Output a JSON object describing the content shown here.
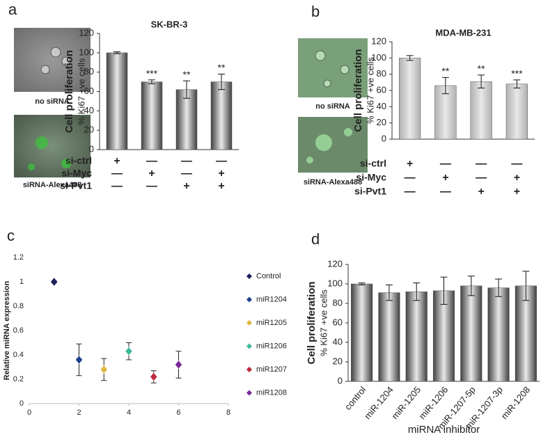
{
  "chart_data": [
    {
      "type": "bar",
      "panel_label": "a",
      "title": "SK-BR-3",
      "ylabel": "Cell proliferation",
      "ylabel2": "% Ki67 +ve cells",
      "image_captions": [
        "no siRNA",
        "siRNA-Alexa488"
      ],
      "values": [
        100,
        70,
        62,
        70
      ],
      "errors": [
        1,
        2,
        9,
        8
      ],
      "annotations": [
        null,
        "***",
        "**",
        "**"
      ],
      "treatments": [
        {
          "name": "si-ctrl",
          "marks": [
            "+",
            "—",
            "—",
            "—"
          ]
        },
        {
          "name": "si-Myc",
          "marks": [
            "—",
            "+",
            "—",
            "+"
          ]
        },
        {
          "name": "si-Pvt1",
          "marks": [
            "—",
            "—",
            "+",
            "+"
          ]
        }
      ],
      "color": "#404040",
      "ylim": [
        0,
        120
      ],
      "yticks": [
        0,
        20,
        40,
        60,
        80,
        100,
        120
      ]
    },
    {
      "type": "bar",
      "panel_label": "b",
      "title": "MDA-MB-231",
      "ylabel": "Cell proliferation",
      "ylabel2": "% Ki67 +ve cells",
      "image_captions": [
        "no siRNA",
        "siRNA-Alexa488"
      ],
      "values": [
        100,
        66,
        71,
        68
      ],
      "errors": [
        3,
        10,
        8,
        5
      ],
      "annotations": [
        null,
        "**",
        "**",
        "***"
      ],
      "treatments": [
        {
          "name": "si-ctrl",
          "marks": [
            "+",
            "—",
            "—",
            "—"
          ]
        },
        {
          "name": "si-Myc",
          "marks": [
            "—",
            "+",
            "—",
            "+"
          ]
        },
        {
          "name": "si-Pvt1",
          "marks": [
            "—",
            "—",
            "+",
            "+"
          ]
        }
      ],
      "color": "#b0b0b0",
      "ylim": [
        0,
        120
      ],
      "yticks": [
        0,
        20,
        40,
        60,
        80,
        100,
        120
      ]
    },
    {
      "type": "scatter",
      "panel_label": "c",
      "ylabel": "Relative miRNA expression",
      "series": [
        {
          "name": "Control",
          "color": "#1f1f5c",
          "x": [
            1
          ],
          "values": [
            1
          ],
          "errors": [
            0.01
          ]
        },
        {
          "name": "miR1204",
          "color": "#1f3f8f",
          "x": [
            2
          ],
          "values": [
            0.36
          ],
          "errors": [
            0.13
          ]
        },
        {
          "name": "miR1205",
          "color": "#e0b840",
          "x": [
            3
          ],
          "values": [
            0.28
          ],
          "errors": [
            0.09
          ]
        },
        {
          "name": "miR1206",
          "color": "#3cb89a",
          "x": [
            4
          ],
          "values": [
            0.43
          ],
          "errors": [
            0.07
          ]
        },
        {
          "name": "miR1207",
          "color": "#c0283c",
          "x": [
            5
          ],
          "values": [
            0.22
          ],
          "errors": [
            0.05
          ]
        },
        {
          "name": "miR1208",
          "color": "#7a2a9a",
          "x": [
            6
          ],
          "values": [
            0.32
          ],
          "errors": [
            0.11
          ]
        }
      ],
      "xlim": [
        0,
        8
      ],
      "xticks": [
        0,
        2,
        4,
        6,
        8
      ],
      "ylim": [
        0,
        1.2
      ],
      "yticks": [
        0,
        0.2,
        0.4,
        0.6,
        0.8,
        1,
        1.2
      ]
    },
    {
      "type": "bar",
      "panel_label": "d",
      "ylabel": "Cell proliferation",
      "ylabel2": "% Ki67 +ve cells",
      "xlabel": "miRNA inhibitor",
      "categories": [
        "control",
        "miR-1204",
        "miR-1205",
        "miR-1206",
        "miR-1207-5p",
        "miR-1207-3p",
        "miR-1208"
      ],
      "values": [
        100,
        91,
        92,
        93,
        98,
        96,
        98
      ],
      "errors": [
        1,
        8,
        9,
        14,
        10,
        9,
        15
      ],
      "color": "#404040",
      "ylim": [
        0,
        120
      ],
      "yticks": [
        0,
        20,
        40,
        60,
        80,
        100,
        120
      ]
    }
  ]
}
